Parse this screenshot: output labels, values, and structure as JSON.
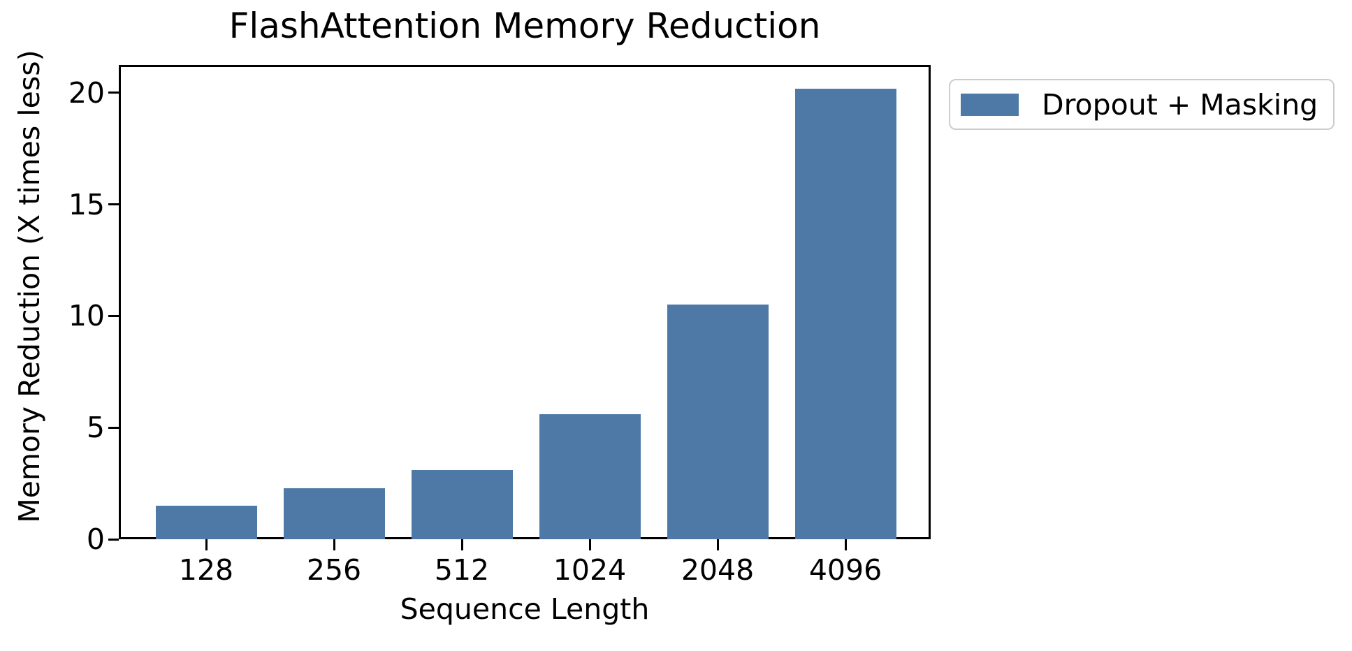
{
  "chart_data": {
    "type": "bar",
    "title": "FlashAttention Memory Reduction",
    "xlabel": "Sequence Length",
    "ylabel": "Memory Reduction (X times less)",
    "categories": [
      "128",
      "256",
      "512",
      "1024",
      "2048",
      "4096"
    ],
    "series": [
      {
        "name": "Dropout + Masking",
        "color": "#4E79A7",
        "values": [
          1.5,
          2.3,
          3.1,
          5.6,
          10.5,
          20.2
        ]
      }
    ],
    "y_ticks": [
      0,
      5,
      10,
      15,
      20
    ],
    "ylim": [
      0,
      21.25
    ],
    "grid": false,
    "legend_position": "outside-upper-right",
    "background_color": "#ffffff",
    "axis_color": "#000000"
  }
}
